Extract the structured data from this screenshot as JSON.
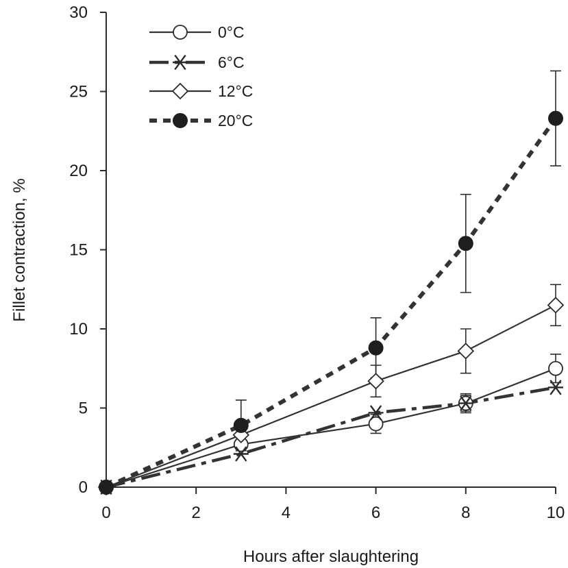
{
  "chart_data": {
    "type": "line",
    "title": "",
    "xlabel": "Hours after slaughtering",
    "ylabel": "Fillet contraction, %",
    "xlim": [
      0,
      10
    ],
    "ylim": [
      0,
      30
    ],
    "x_ticks": [
      0,
      2,
      4,
      6,
      8,
      10
    ],
    "y_ticks": [
      0,
      5,
      10,
      15,
      20,
      25,
      30
    ],
    "grid": false,
    "legend_position": "top-left",
    "series": [
      {
        "name": "0°C",
        "marker": "open-circle",
        "line_style": "solid",
        "color": "#333333",
        "x": [
          0,
          3,
          6,
          8,
          10
        ],
        "y": [
          0,
          2.7,
          4.0,
          5.3,
          7.5
        ],
        "error": [
          0,
          0.3,
          0.6,
          0.6,
          0.9
        ]
      },
      {
        "name": "6°C",
        "marker": "asterisk",
        "line_style": "dash-dot",
        "color": "#333333",
        "x": [
          0,
          3,
          6,
          8,
          10
        ],
        "y": [
          0,
          2.1,
          4.7,
          5.3,
          6.3
        ],
        "error": [
          0,
          0,
          0,
          0.5,
          0
        ]
      },
      {
        "name": "12°C",
        "marker": "open-diamond",
        "line_style": "solid",
        "color": "#333333",
        "x": [
          0,
          3,
          6,
          8,
          10
        ],
        "y": [
          0,
          3.3,
          6.7,
          8.6,
          11.5
        ],
        "error": [
          0,
          0.5,
          1.0,
          1.4,
          1.3
        ]
      },
      {
        "name": "20°C",
        "marker": "filled-circle",
        "line_style": "dotted",
        "color": "#333333",
        "x": [
          0,
          3,
          6,
          8,
          10
        ],
        "y": [
          0,
          3.9,
          8.8,
          15.4,
          23.3
        ],
        "error": [
          0,
          1.6,
          1.9,
          3.1,
          3.0
        ]
      }
    ]
  }
}
